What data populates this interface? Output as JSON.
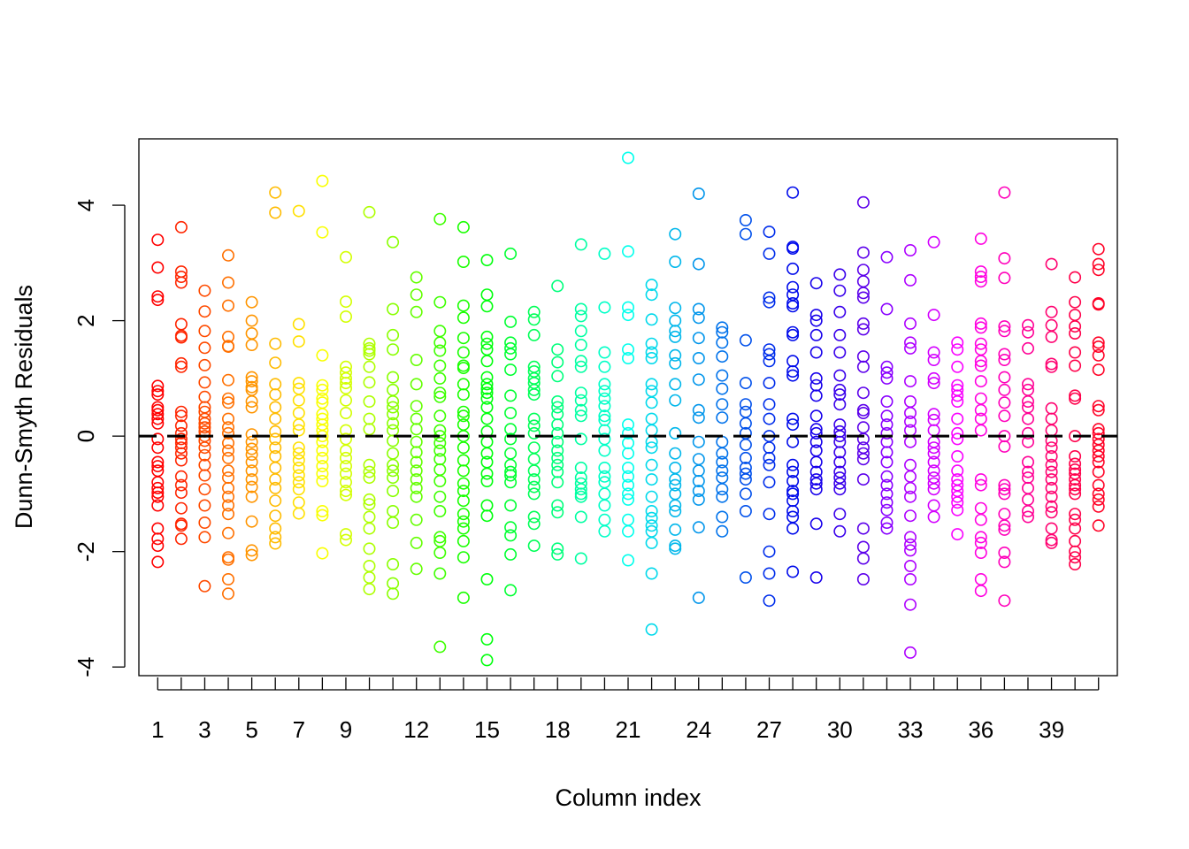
{
  "chart_data": {
    "type": "scatter",
    "title": "",
    "xlabel": "Column index",
    "ylabel": "Dunn-Smyth Residuals",
    "xlim": [
      0.2,
      41.8
    ],
    "ylim": [
      -4.15,
      5.15
    ],
    "yticks": [
      -4,
      -2,
      0,
      2,
      4
    ],
    "yticklabels": [
      "-4",
      "-2",
      "0",
      "2",
      "4"
    ],
    "xticks": [
      1,
      2,
      3,
      4,
      5,
      6,
      7,
      8,
      9,
      10,
      11,
      12,
      13,
      14,
      15,
      16,
      17,
      18,
      19,
      20,
      21,
      22,
      23,
      24,
      25,
      26,
      27,
      28,
      29,
      30,
      31,
      32,
      33,
      34,
      35,
      36,
      37,
      38,
      39,
      40,
      41
    ],
    "xticklabels": [
      {
        "x": 1,
        "label": "1"
      },
      {
        "x": 3,
        "label": "3"
      },
      {
        "x": 5,
        "label": "5"
      },
      {
        "x": 7,
        "label": "7"
      },
      {
        "x": 9,
        "label": "9"
      },
      {
        "x": 12,
        "label": "12"
      },
      {
        "x": 15,
        "label": "15"
      },
      {
        "x": 18,
        "label": "18"
      },
      {
        "x": 21,
        "label": "21"
      },
      {
        "x": 24,
        "label": "24"
      },
      {
        "x": 27,
        "label": "27"
      },
      {
        "x": 30,
        "label": "30"
      },
      {
        "x": 33,
        "label": "33"
      },
      {
        "x": 36,
        "label": "36"
      },
      {
        "x": 39,
        "label": "39"
      }
    ],
    "reference_line": {
      "y": 0,
      "style": "dashed",
      "color": "#000000"
    },
    "marker": "open-circle",
    "color_scheme": "rainbow by column index",
    "grid": false,
    "legend": "none",
    "columns": [
      {
        "x": 1,
        "y": [
          3.4,
          2.92,
          2.42,
          2.36,
          0.87,
          0.78,
          0.72,
          0.5,
          0.45,
          0.38,
          0.3,
          0.22,
          -0.05,
          -0.2,
          -0.45,
          -0.52,
          -0.6,
          -0.8,
          -0.9,
          -0.98,
          -1.05,
          -1.2,
          -1.6,
          -1.78,
          -1.9,
          -2.18
        ]
      },
      {
        "x": 2,
        "y": [
          3.62,
          2.85,
          2.76,
          2.66,
          1.94,
          1.74,
          1.71,
          1.26,
          1.2,
          0.42,
          0.35,
          0.18,
          0.05,
          -0.05,
          -0.12,
          -0.2,
          -0.3,
          -0.42,
          -0.7,
          -0.85,
          -0.98,
          -1.25,
          -1.52,
          -1.55,
          -1.78
        ]
      },
      {
        "x": 3,
        "y": [
          2.52,
          2.16,
          1.82,
          1.53,
          1.23,
          0.93,
          0.68,
          0.5,
          0.42,
          0.3,
          0.22,
          0.15,
          0.08,
          0.0,
          -0.08,
          -0.2,
          -0.33,
          -0.5,
          -0.68,
          -0.92,
          -1.2,
          -1.5,
          -1.75,
          -2.6
        ]
      },
      {
        "x": 4,
        "y": [
          3.13,
          2.66,
          2.26,
          1.72,
          1.56,
          1.55,
          0.97,
          0.65,
          0.58,
          0.3,
          0.15,
          0.05,
          -0.12,
          -0.25,
          -0.38,
          -0.6,
          -0.72,
          -0.9,
          -1.05,
          -1.2,
          -1.35,
          -1.68,
          -2.1,
          -2.14,
          -2.48,
          -2.73
        ]
      },
      {
        "x": 5,
        "y": [
          2.32,
          2.0,
          1.78,
          1.58,
          1.02,
          0.95,
          0.85,
          0.8,
          0.6,
          0.5,
          0.03,
          -0.1,
          -0.22,
          -0.32,
          -0.45,
          -0.6,
          -0.75,
          -0.88,
          -1.05,
          -1.48,
          -1.98,
          -2.06
        ]
      },
      {
        "x": 6,
        "y": [
          4.22,
          3.87,
          1.6,
          1.27,
          0.9,
          0.72,
          0.5,
          0.3,
          0.08,
          -0.05,
          -0.2,
          -0.35,
          -0.55,
          -0.75,
          -0.9,
          -1.12,
          -1.38,
          -1.6,
          -1.75,
          -1.86
        ]
      },
      {
        "x": 7,
        "y": [
          3.9,
          1.94,
          1.64,
          0.92,
          0.82,
          0.62,
          0.4,
          0.2,
          0.1,
          -0.2,
          -0.3,
          -0.42,
          -0.55,
          -0.68,
          -0.8,
          -0.92,
          -1.15,
          -1.34
        ]
      },
      {
        "x": 8,
        "y": [
          4.42,
          3.53,
          1.4,
          0.88,
          0.8,
          0.65,
          0.58,
          0.38,
          0.3,
          0.2,
          0.1,
          0.0,
          -0.1,
          -0.25,
          -0.38,
          -0.52,
          -0.65,
          -0.78,
          -1.3,
          -1.37,
          -2.03
        ]
      },
      {
        "x": 9,
        "y": [
          3.1,
          2.33,
          2.07,
          1.2,
          1.1,
          1.0,
          0.92,
          0.83,
          0.62,
          0.4,
          0.1,
          -0.05,
          -0.25,
          -0.38,
          -0.52,
          -0.65,
          -0.8,
          -0.95,
          -1.02,
          -1.7,
          -1.8
        ]
      },
      {
        "x": 10,
        "y": [
          3.88,
          1.6,
          1.52,
          1.48,
          1.42,
          1.2,
          0.93,
          0.6,
          0.3,
          0.12,
          -0.5,
          -0.62,
          -0.72,
          -1.1,
          -1.18,
          -1.4,
          -1.6,
          -1.95,
          -2.25,
          -2.45,
          -2.65
        ]
      },
      {
        "x": 11,
        "y": [
          3.36,
          2.2,
          1.75,
          1.5,
          1.02,
          0.8,
          0.6,
          0.5,
          0.38,
          0.22,
          0.1,
          -0.08,
          -0.3,
          -0.5,
          -0.6,
          -0.72,
          -0.95,
          -1.3,
          -1.5,
          -2.22,
          -2.55,
          -2.73
        ]
      },
      {
        "x": 12,
        "y": [
          2.75,
          2.45,
          2.15,
          1.32,
          0.9,
          0.52,
          0.3,
          0.12,
          -0.1,
          -0.28,
          -0.45,
          -0.6,
          -0.75,
          -0.9,
          -1.05,
          -1.45,
          -1.85,
          -2.3
        ]
      },
      {
        "x": 13,
        "y": [
          3.76,
          2.32,
          1.82,
          1.62,
          1.48,
          1.22,
          1.0,
          0.75,
          0.68,
          0.35,
          0.1,
          0.0,
          -0.12,
          -0.25,
          -0.4,
          -0.58,
          -0.78,
          -1.05,
          -1.3,
          -1.75,
          -1.82,
          -2.02,
          -2.38,
          -3.65
        ]
      },
      {
        "x": 14,
        "y": [
          3.62,
          3.02,
          2.26,
          2.05,
          1.7,
          1.45,
          1.22,
          1.18,
          0.9,
          0.72,
          0.42,
          0.35,
          0.2,
          0.0,
          -0.2,
          -0.42,
          -0.6,
          -0.82,
          -0.95,
          -1.12,
          -1.35,
          -1.48,
          -1.6,
          -1.82,
          -2.1,
          -2.8
        ]
      },
      {
        "x": 15,
        "y": [
          3.05,
          2.45,
          2.25,
          1.72,
          1.6,
          1.5,
          1.3,
          1.02,
          0.9,
          0.82,
          0.75,
          0.65,
          0.5,
          0.3,
          0.08,
          -0.1,
          -0.3,
          -0.45,
          -0.65,
          -0.78,
          -1.2,
          -1.38,
          -2.48,
          -3.52,
          -3.88
        ]
      },
      {
        "x": 16,
        "y": [
          3.16,
          1.98,
          1.62,
          1.52,
          1.42,
          1.15,
          0.7,
          0.4,
          0.12,
          -0.05,
          -0.3,
          -0.5,
          -0.62,
          -0.68,
          -0.8,
          -1.2,
          -1.58,
          -1.72,
          -2.05,
          -2.67
        ]
      },
      {
        "x": 17,
        "y": [
          2.15,
          2.02,
          1.75,
          1.2,
          1.12,
          1.0,
          0.92,
          0.8,
          0.72,
          0.3,
          0.18,
          0.05,
          -0.2,
          -0.4,
          -0.6,
          -0.75,
          -0.88,
          -1.0,
          -1.4,
          -1.52,
          -1.9
        ]
      },
      {
        "x": 18,
        "y": [
          2.6,
          1.5,
          1.28,
          1.04,
          0.6,
          0.5,
          0.38,
          0.2,
          0.05,
          -0.1,
          -0.25,
          -0.38,
          -0.5,
          -0.62,
          -0.8,
          -1.2,
          -1.32,
          -1.95,
          -2.05
        ]
      },
      {
        "x": 19,
        "y": [
          3.32,
          2.2,
          2.08,
          1.82,
          1.58,
          1.3,
          1.2,
          0.75,
          0.62,
          0.45,
          0.35,
          -0.05,
          -0.55,
          -0.72,
          -0.82,
          -0.92,
          -1.0,
          -1.05,
          -1.4,
          -2.12
        ]
      },
      {
        "x": 20,
        "y": [
          3.16,
          2.23,
          1.45,
          1.2,
          0.9,
          0.78,
          0.65,
          0.52,
          0.35,
          0.28,
          0.1,
          -0.05,
          -0.25,
          -0.55,
          -0.7,
          -0.8,
          -1.0,
          -1.2,
          -1.45,
          -1.65
        ]
      },
      {
        "x": 21,
        "y": [
          4.82,
          3.2,
          2.23,
          2.1,
          1.5,
          1.35,
          0.2,
          0.05,
          -0.12,
          -0.3,
          -0.55,
          -0.7,
          -0.85,
          -1.0,
          -1.1,
          -1.45,
          -1.65,
          -2.15
        ]
      },
      {
        "x": 22,
        "y": [
          2.62,
          2.45,
          2.02,
          1.6,
          1.45,
          1.35,
          0.9,
          0.78,
          0.58,
          0.3,
          0.1,
          -0.1,
          -0.2,
          -0.5,
          -0.75,
          -1.05,
          -1.3,
          -1.42,
          -1.55,
          -1.65,
          -1.85,
          -2.38,
          -3.35
        ]
      },
      {
        "x": 23,
        "y": [
          3.5,
          3.02,
          2.22,
          2.0,
          1.82,
          1.72,
          1.4,
          1.26,
          0.9,
          0.62,
          0.05,
          -0.3,
          -0.55,
          -0.75,
          -0.85,
          -1.0,
          -1.2,
          -1.3,
          -1.62,
          -1.9,
          -1.95
        ]
      },
      {
        "x": 24,
        "y": [
          4.2,
          2.98,
          2.2,
          2.05,
          1.7,
          1.35,
          0.98,
          0.45,
          0.32,
          -0.1,
          -0.4,
          -0.6,
          -0.78,
          -0.95,
          -1.1,
          -1.58,
          -2.8
        ]
      },
      {
        "x": 25,
        "y": [
          1.88,
          1.8,
          1.62,
          1.38,
          1.05,
          0.82,
          0.55,
          0.32,
          -0.1,
          -0.3,
          -0.45,
          -0.6,
          -0.72,
          -0.92,
          -1.05,
          -1.4,
          -1.65
        ]
      },
      {
        "x": 26,
        "y": [
          3.74,
          3.5,
          1.66,
          0.92,
          0.55,
          0.42,
          0.22,
          0.05,
          -0.15,
          -0.38,
          -0.55,
          -0.65,
          -0.75,
          -1.0,
          -1.3,
          -2.45
        ]
      },
      {
        "x": 27,
        "y": [
          3.54,
          3.16,
          2.4,
          2.32,
          1.5,
          1.42,
          1.3,
          0.92,
          0.55,
          0.3,
          0.0,
          -0.2,
          -0.38,
          -0.5,
          -0.8,
          -1.35,
          -2.0,
          -2.38,
          -2.85
        ]
      },
      {
        "x": 28,
        "y": [
          4.22,
          3.28,
          3.25,
          2.9,
          2.58,
          2.45,
          2.3,
          2.25,
          1.8,
          1.75,
          1.3,
          1.12,
          1.05,
          0.3,
          0.2,
          -0.1,
          -0.5,
          -0.62,
          -0.78,
          -0.95,
          -1.0,
          -1.12,
          -1.3,
          -1.4,
          -1.6,
          -2.35
        ]
      },
      {
        "x": 29,
        "y": [
          2.65,
          2.1,
          2.0,
          1.75,
          1.45,
          1.0,
          0.88,
          0.7,
          0.35,
          0.12,
          0.05,
          -0.1,
          -0.25,
          -0.45,
          -0.62,
          -0.75,
          -0.82,
          -0.92,
          -1.52,
          -2.45
        ]
      },
      {
        "x": 30,
        "y": [
          2.8,
          2.52,
          2.15,
          1.75,
          1.45,
          1.05,
          0.8,
          0.72,
          0.55,
          0.2,
          0.08,
          0.0,
          -0.1,
          -0.28,
          -0.45,
          -0.62,
          -0.72,
          -0.82,
          -0.92,
          -1.35,
          -1.65
        ]
      },
      {
        "x": 31,
        "y": [
          4.05,
          3.18,
          2.88,
          2.68,
          2.48,
          2.4,
          1.95,
          1.85,
          1.38,
          1.2,
          0.75,
          0.45,
          0.4,
          0.15,
          -0.05,
          -0.2,
          -0.3,
          -0.4,
          -0.75,
          -1.6,
          -1.92,
          -2.12,
          -2.48
        ]
      },
      {
        "x": 32,
        "y": [
          3.1,
          2.2,
          1.2,
          1.1,
          1.0,
          0.6,
          0.35,
          0.2,
          0.05,
          -0.1,
          -0.28,
          -0.45,
          -0.7,
          -0.85,
          -1.0,
          -1.15,
          -1.28,
          -1.5,
          -1.6
        ]
      },
      {
        "x": 33,
        "y": [
          3.22,
          2.7,
          1.95,
          1.62,
          1.52,
          0.95,
          0.6,
          0.4,
          0.25,
          0.1,
          -0.1,
          -0.5,
          -0.7,
          -0.9,
          -1.05,
          -1.38,
          -1.75,
          -1.88,
          -1.98,
          -2.25,
          -2.48,
          -2.92,
          -3.75
        ]
      },
      {
        "x": 34,
        "y": [
          3.36,
          2.1,
          1.45,
          1.32,
          1.0,
          0.92,
          0.38,
          0.28,
          0.1,
          -0.1,
          -0.2,
          -0.3,
          -0.45,
          -0.6,
          -0.72,
          -0.82,
          -0.92,
          -1.2,
          -1.4
        ]
      },
      {
        "x": 35,
        "y": [
          1.62,
          1.5,
          1.2,
          0.88,
          0.8,
          0.7,
          0.6,
          0.3,
          0.05,
          -0.05,
          -0.35,
          -0.6,
          -0.75,
          -0.85,
          -0.95,
          -1.05,
          -1.15,
          -1.28,
          -1.7
        ]
      },
      {
        "x": 36,
        "y": [
          3.42,
          2.85,
          2.76,
          2.68,
          1.95,
          1.88,
          1.6,
          1.5,
          1.3,
          1.22,
          0.95,
          0.65,
          0.45,
          0.3,
          0.1,
          -0.75,
          -0.85,
          -1.25,
          -1.45,
          -1.75,
          -1.85,
          -2.02,
          -2.48,
          -2.68
        ]
      },
      {
        "x": 37,
        "y": [
          4.22,
          3.08,
          2.74,
          1.9,
          1.82,
          1.42,
          1.32,
          1.02,
          0.8,
          0.58,
          0.35,
          0.0,
          -0.18,
          -0.85,
          -0.92,
          -1.0,
          -1.35,
          -1.55,
          -1.62,
          -2.02,
          -2.18,
          -2.85
        ]
      },
      {
        "x": 38,
        "y": [
          1.92,
          1.8,
          1.52,
          0.9,
          0.8,
          0.6,
          0.5,
          0.3,
          0.05,
          -0.1,
          -0.45,
          -0.62,
          -0.72,
          -0.9,
          -1.1,
          -1.3,
          -1.4
        ]
      },
      {
        "x": 39,
        "y": [
          2.98,
          2.15,
          1.92,
          1.72,
          1.25,
          1.2,
          0.48,
          0.3,
          0.1,
          -0.08,
          -0.2,
          -0.35,
          -0.5,
          -0.62,
          -0.75,
          -0.9,
          -1.05,
          -1.22,
          -1.32,
          -1.6,
          -1.8,
          -1.85
        ]
      },
      {
        "x": 40,
        "y": [
          2.75,
          2.32,
          2.1,
          1.9,
          1.78,
          1.45,
          1.22,
          0.7,
          0.65,
          0.0,
          -0.35,
          -0.48,
          -0.58,
          -0.65,
          -0.75,
          -0.85,
          -0.92,
          -1.0,
          -1.35,
          -1.45,
          -1.6,
          -1.82,
          -2.0,
          -2.1,
          -2.22
        ]
      },
      {
        "x": 41,
        "y": [
          3.24,
          2.98,
          2.88,
          2.3,
          2.28,
          1.62,
          1.55,
          1.4,
          1.15,
          0.52,
          0.45,
          0.12,
          0.05,
          -0.05,
          -0.15,
          -0.25,
          -0.35,
          -0.45,
          -0.62,
          -0.85,
          -1.0,
          -1.1,
          -1.22,
          -1.55
        ]
      }
    ]
  }
}
